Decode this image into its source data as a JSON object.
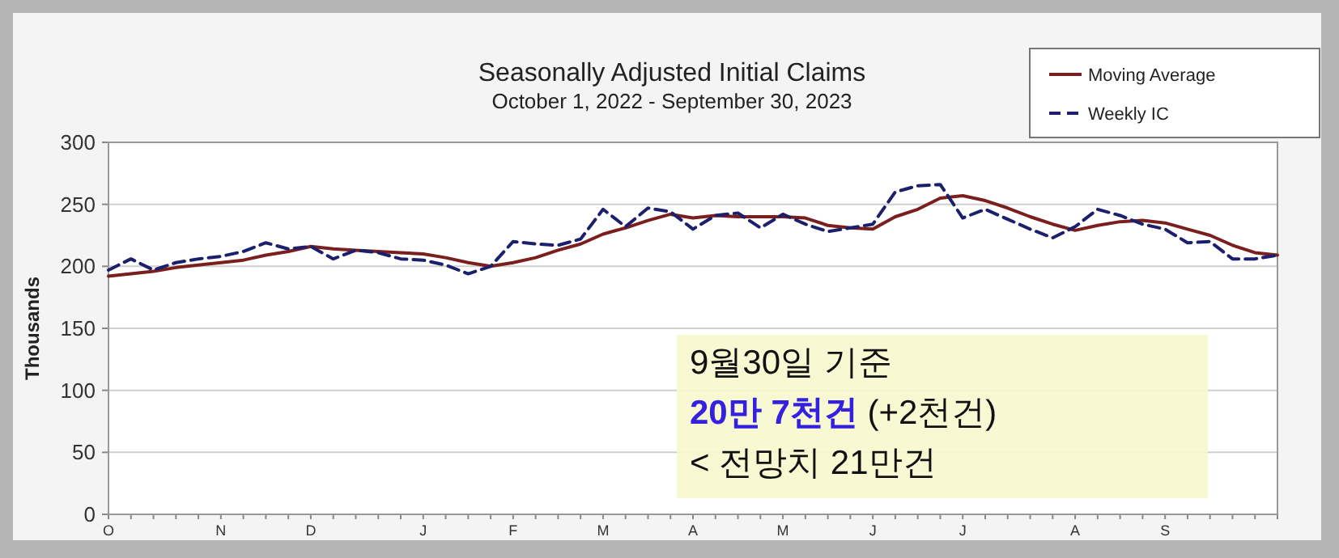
{
  "chart_data": {
    "type": "line",
    "title": "Seasonally Adjusted Initial Claims",
    "subtitle": "October 1, 2022 - September 30, 2023",
    "ylabel": "Thousands",
    "categories": [
      "O",
      null,
      null,
      null,
      null,
      "N",
      null,
      null,
      null,
      "D",
      null,
      null,
      null,
      null,
      "J",
      null,
      null,
      null,
      "F",
      null,
      null,
      null,
      "M",
      null,
      null,
      null,
      "A",
      null,
      null,
      null,
      "M",
      null,
      null,
      null,
      "J",
      null,
      null,
      null,
      "J",
      null,
      null,
      null,
      null,
      "A",
      null,
      null,
      null,
      "S",
      null,
      null,
      null,
      null,
      null
    ],
    "ylim": [
      0,
      300
    ],
    "yticks": [
      0,
      50,
      100,
      150,
      200,
      250,
      300
    ],
    "grid": "y",
    "legend": "top right",
    "series": [
      {
        "name": "Moving Average",
        "color": "#7a1e1e",
        "line_style": "solid",
        "values": [
          192,
          194,
          196,
          199,
          201,
          203,
          205,
          209,
          212,
          216,
          214,
          213,
          212,
          211,
          210,
          207,
          203,
          200,
          203,
          207,
          213,
          218,
          226,
          231,
          237,
          242,
          239,
          241,
          240,
          240,
          240,
          239,
          233,
          231,
          230,
          240,
          246,
          255,
          257,
          253,
          247,
          240,
          234,
          229,
          233,
          236,
          237,
          235,
          230,
          225,
          217,
          211,
          209
        ]
      },
      {
        "name": "Weekly IC",
        "color": "#1c1f6b",
        "line_style": "dashed",
        "values": [
          197,
          206,
          197,
          203,
          206,
          208,
          212,
          219,
          214,
          216,
          206,
          213,
          211,
          206,
          205,
          201,
          194,
          200,
          220,
          218,
          217,
          222,
          246,
          232,
          247,
          244,
          230,
          241,
          243,
          231,
          242,
          234,
          228,
          231,
          234,
          260,
          265,
          266,
          239,
          246,
          238,
          230,
          223,
          232,
          246,
          241,
          234,
          230,
          219,
          220,
          206,
          206,
          209
        ]
      }
    ],
    "annotations": [
      "9월30일 기준",
      "20만 7천건 (+2천건)",
      "< 전망치 21만건"
    ]
  }
}
